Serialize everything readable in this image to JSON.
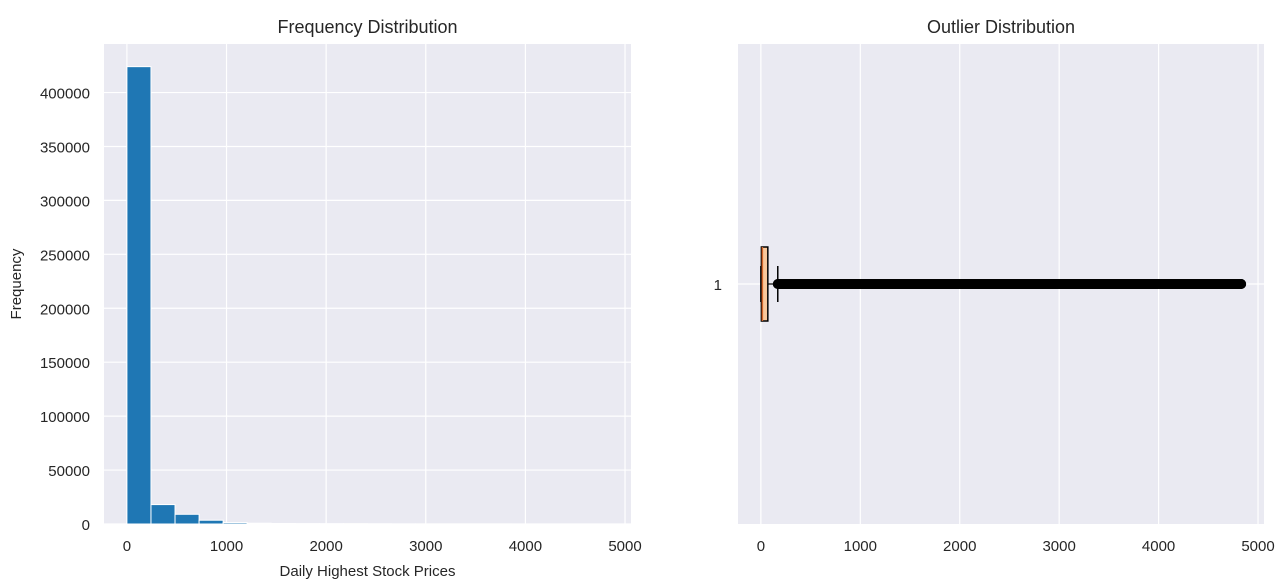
{
  "chart_data": [
    {
      "type": "histogram",
      "title": "Frequency Distribution",
      "xlabel": "Daily Highest Stock Prices",
      "ylabel": "Frequency",
      "xlim": [
        -230,
        5060
      ],
      "ylim": [
        0,
        445000
      ],
      "grid": true,
      "bar_color": "#1f77b4",
      "x_ticks": [
        0,
        1000,
        2000,
        3000,
        4000,
        5000
      ],
      "x_tick_labels": [
        "0",
        "1000",
        "2000",
        "3000",
        "4000",
        "5000"
      ],
      "y_ticks": [
        0,
        50000,
        100000,
        150000,
        200000,
        250000,
        300000,
        350000,
        400000
      ],
      "y_tick_labels": [
        "0",
        "50000",
        "100000",
        "150000",
        "200000",
        "250000",
        "300000",
        "350000",
        "400000"
      ],
      "bins": [
        {
          "x0": 0,
          "x1": 241.5,
          "count": 424000
        },
        {
          "x0": 241.5,
          "x1": 483,
          "count": 18000
        },
        {
          "x0": 483,
          "x1": 724.5,
          "count": 9000
        },
        {
          "x0": 724.5,
          "x1": 966,
          "count": 3500
        },
        {
          "x0": 966,
          "x1": 1207.5,
          "count": 1300
        },
        {
          "x0": 1207.5,
          "x1": 1449,
          "count": 700
        },
        {
          "x0": 1449,
          "x1": 1690.5,
          "count": 500
        },
        {
          "x0": 1690.5,
          "x1": 1932,
          "count": 350
        },
        {
          "x0": 1932,
          "x1": 2173.5,
          "count": 300
        },
        {
          "x0": 2173.5,
          "x1": 2415,
          "count": 250
        },
        {
          "x0": 2415,
          "x1": 2656.5,
          "count": 150
        },
        {
          "x0": 2656.5,
          "x1": 2898,
          "count": 100
        },
        {
          "x0": 2898,
          "x1": 3139.5,
          "count": 80
        },
        {
          "x0": 3139.5,
          "x1": 3381,
          "count": 60
        },
        {
          "x0": 3381,
          "x1": 3622.5,
          "count": 40
        },
        {
          "x0": 3622.5,
          "x1": 3864,
          "count": 30
        },
        {
          "x0": 3864,
          "x1": 4105.5,
          "count": 25
        },
        {
          "x0": 4105.5,
          "x1": 4347,
          "count": 20
        },
        {
          "x0": 4347,
          "x1": 4588.5,
          "count": 15
        },
        {
          "x0": 4588.5,
          "x1": 4830,
          "count": 10
        }
      ]
    },
    {
      "type": "boxplot",
      "title": "Outlier Distribution",
      "orientation": "horizontal",
      "xlim": [
        -230,
        5060
      ],
      "grid": true,
      "box_color": "#f9c89b",
      "x_ticks": [
        0,
        1000,
        2000,
        3000,
        4000,
        5000
      ],
      "x_tick_labels": [
        "0",
        "1000",
        "2000",
        "3000",
        "4000",
        "5000"
      ],
      "y_tick_labels": [
        "1"
      ],
      "box": {
        "whisker_low": 0,
        "q1": 5,
        "median": 15,
        "q3": 70,
        "whisker_high": 170,
        "outlier_min": 170,
        "outlier_max": 4830
      }
    }
  ]
}
